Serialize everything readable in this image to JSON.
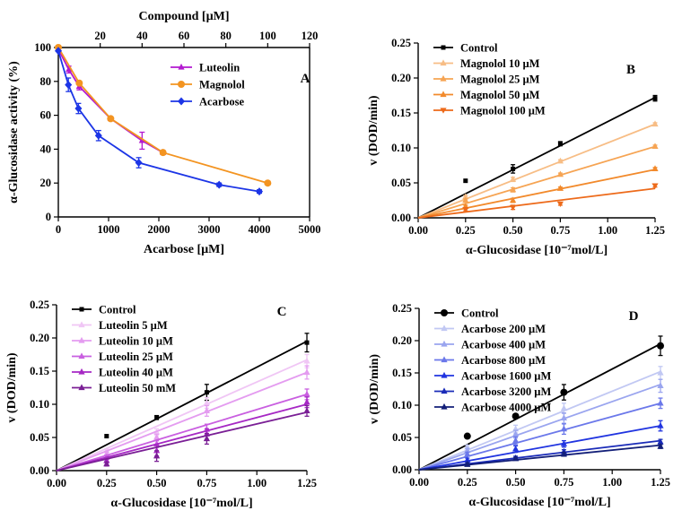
{
  "chart_data": [
    {
      "panel": "A",
      "type": "line",
      "top_xlabel": "Compound [µM]",
      "top_xlim": [
        0,
        120
      ],
      "top_xticks": [
        20,
        40,
        60,
        80,
        100,
        120
      ],
      "xlabel": "Acarbose [µM]",
      "xlim": [
        0,
        5000
      ],
      "xticks": [
        0,
        1000,
        2000,
        3000,
        4000,
        5000
      ],
      "ylabel": "α-Glucosidase activity (%)",
      "ylim": [
        0,
        100
      ],
      "yticks": [
        0,
        20,
        40,
        60,
        80,
        100
      ],
      "legend_position": "top-right",
      "series": [
        {
          "name": "Luteolin",
          "axis": "top",
          "color": "#b31ad0",
          "marker": "triangle",
          "x": [
            0,
            5,
            10,
            25,
            40,
            50
          ],
          "y": [
            99,
            87,
            77,
            58,
            45,
            38
          ],
          "err": [
            0,
            2,
            2,
            1,
            5,
            1
          ]
        },
        {
          "name": "Magnolol",
          "axis": "top",
          "color": "#f39421",
          "marker": "circle",
          "x": [
            0,
            10,
            25,
            50,
            100
          ],
          "y": [
            100,
            79,
            58,
            38,
            20
          ],
          "err": [
            0,
            1,
            1,
            1,
            1
          ]
        },
        {
          "name": "Acarbose",
          "axis": "bottom",
          "color": "#1c35e6",
          "marker": "diamond",
          "x": [
            0,
            200,
            400,
            800,
            1600,
            3200,
            4000
          ],
          "y": [
            98,
            78,
            64,
            48,
            32,
            19,
            15
          ],
          "err": [
            0,
            4,
            3,
            3,
            3,
            1,
            1
          ]
        }
      ]
    },
    {
      "panel": "B",
      "type": "scatter",
      "xlabel": "α-Glucosidase [10⁻⁷mol/L]",
      "ylabel": "v (DOD/min)",
      "xlim": [
        0,
        1.25
      ],
      "ylim": [
        0,
        0.25
      ],
      "xticks": [
        "0.00",
        "0.25",
        "0.50",
        "0.75",
        "1.00",
        "1.25"
      ],
      "yticks": [
        "0.00",
        "0.05",
        "0.10",
        "0.15",
        "0.20",
        "0.25"
      ],
      "legend_position": "top-left",
      "x": [
        0.25,
        0.5,
        0.75,
        1.25
      ],
      "series": [
        {
          "name": "Control",
          "color": "#000000",
          "marker": "square",
          "y": [
            0.053,
            0.07,
            0.106,
            0.171
          ],
          "err": [
            0,
            0.006,
            0.003,
            0.004
          ],
          "fit_end": 0.172
        },
        {
          "name": "Magnolol 10 µM",
          "color": "#f7bd85",
          "marker": "triangle",
          "y": [
            0.03,
            0.055,
            0.081,
            0.134
          ],
          "err": [
            0.002,
            0.003,
            0.002,
            0.002
          ],
          "fit_end": 0.134
        },
        {
          "name": "Magnolol 25 µM",
          "color": "#f6a453",
          "marker": "triangle",
          "y": [
            0.025,
            0.04,
            0.062,
            0.102
          ],
          "err": [
            0.002,
            0.003,
            0.002,
            0.002
          ],
          "fit_end": 0.102
        },
        {
          "name": "Magnolol 50 µM",
          "color": "#f28a2c",
          "marker": "triangle",
          "y": [
            0.016,
            0.025,
            0.042,
            0.07
          ],
          "err": [
            0.002,
            0.003,
            0.002,
            0.002
          ],
          "fit_end": 0.069
        },
        {
          "name": "Magnolol 100 µM",
          "color": "#ed6a1a",
          "marker": "triangle-down",
          "y": [
            0.012,
            0.015,
            0.02,
            0.046
          ],
          "err": [
            0.002,
            0.003,
            0.002,
            0.002
          ],
          "fit_end": 0.042
        }
      ]
    },
    {
      "panel": "C",
      "type": "scatter",
      "xlabel": "α-Glucosidase [10⁻⁷mol/L]",
      "ylabel": "v (DOD/min)",
      "xlim": [
        0,
        1.25
      ],
      "ylim": [
        0,
        0.25
      ],
      "xticks": [
        "0.00",
        "0.25",
        "0.50",
        "0.75",
        "1.00",
        "1.25"
      ],
      "yticks": [
        "0.00",
        "0.05",
        "0.10",
        "0.15",
        "0.20",
        "0.25"
      ],
      "legend_position": "top-left",
      "x": [
        0.25,
        0.5,
        0.75,
        1.25
      ],
      "series": [
        {
          "name": "Control",
          "color": "#000000",
          "marker": "square",
          "y": [
            0.052,
            0.08,
            0.118,
            0.193
          ],
          "err": [
            0,
            0.003,
            0.012,
            0.014
          ],
          "fit_end": 0.195
        },
        {
          "name": "Luteolin 5 µM",
          "color": "#f0c6f5",
          "marker": "triangle",
          "y": [
            0.03,
            0.058,
            0.102,
            0.165
          ],
          "err": [
            0.003,
            0.005,
            0.008,
            0.01
          ],
          "fit_end": 0.167
        },
        {
          "name": "Luteolin 10 µM",
          "color": "#e49cf0",
          "marker": "triangle",
          "y": [
            0.025,
            0.05,
            0.09,
            0.148
          ],
          "err": [
            0.003,
            0.005,
            0.008,
            0.01
          ],
          "fit_end": 0.148
        },
        {
          "name": "Luteolin 25 µM",
          "color": "#c95fe0",
          "marker": "triangle",
          "y": [
            0.02,
            0.04,
            0.062,
            0.115
          ],
          "err": [
            0.003,
            0.005,
            0.008,
            0.008
          ],
          "fit_end": 0.115
        },
        {
          "name": "Luteolin 40 µM",
          "color": "#a628c4",
          "marker": "triangle",
          "y": [
            0.015,
            0.03,
            0.055,
            0.103
          ],
          "err": [
            0.003,
            0.008,
            0.008,
            0.008
          ],
          "fit_end": 0.1
        },
        {
          "name": "Luteolin 50 mM",
          "color": "#7a1f95",
          "marker": "triangle",
          "y": [
            0.01,
            0.022,
            0.048,
            0.09
          ],
          "err": [
            0.003,
            0.008,
            0.008,
            0.008
          ],
          "fit_end": 0.088
        }
      ]
    },
    {
      "panel": "D",
      "type": "scatter",
      "xlabel": "α-Glucosidase [10⁻⁷mol/L]",
      "ylabel": "v (DOD/min)",
      "xlim": [
        0,
        1.25
      ],
      "ylim": [
        0,
        0.25
      ],
      "xticks": [
        "0.00",
        "0.25",
        "0.50",
        "0.75",
        "1.00",
        "1.25"
      ],
      "yticks": [
        "0.00",
        "0.05",
        "0.10",
        "0.15",
        "0.20",
        "0.25"
      ],
      "legend_position": "top-left",
      "x": [
        0.25,
        0.5,
        0.75,
        1.25
      ],
      "series": [
        {
          "name": "Control",
          "color": "#000000",
          "marker": "circle",
          "y": [
            0.052,
            0.083,
            0.12,
            0.192
          ],
          "err": [
            0.003,
            0.003,
            0.012,
            0.015
          ],
          "fit_end": 0.195
        },
        {
          "name": "Acarbose 200 µM",
          "color": "#c1c8f3",
          "marker": "triangle",
          "y": [
            0.035,
            0.063,
            0.095,
            0.15
          ],
          "err": [
            0.003,
            0.006,
            0.008,
            0.01
          ],
          "fit_end": 0.152
        },
        {
          "name": "Acarbose 400 µM",
          "color": "#9aa5ef",
          "marker": "triangle",
          "y": [
            0.03,
            0.055,
            0.08,
            0.13
          ],
          "err": [
            0.003,
            0.006,
            0.008,
            0.01
          ],
          "fit_end": 0.132
        },
        {
          "name": "Acarbose 800 µM",
          "color": "#6b78ea",
          "marker": "triangle",
          "y": [
            0.024,
            0.045,
            0.063,
            0.103
          ],
          "err": [
            0.003,
            0.006,
            0.008,
            0.008
          ],
          "fit_end": 0.103
        },
        {
          "name": "Acarbose 1600 µM",
          "color": "#2034e0",
          "marker": "triangle",
          "y": [
            0.015,
            0.032,
            0.04,
            0.068
          ],
          "err": [
            0.003,
            0.005,
            0.005,
            0.008
          ],
          "fit_end": 0.068
        },
        {
          "name": "Acarbose 3200 µM",
          "color": "#1a2bb8",
          "marker": "triangle",
          "y": [
            0.01,
            0.018,
            0.028,
            0.043
          ],
          "err": [
            0.002,
            0.003,
            0.003,
            0.004
          ],
          "fit_end": 0.045
        },
        {
          "name": "Acarbose 4000 µM",
          "color": "#131f78",
          "marker": "triangle",
          "y": [
            0.008,
            0.017,
            0.024,
            0.036
          ],
          "err": [
            0.002,
            0.002,
            0.003,
            0.003
          ],
          "fit_end": 0.038
        }
      ]
    }
  ]
}
